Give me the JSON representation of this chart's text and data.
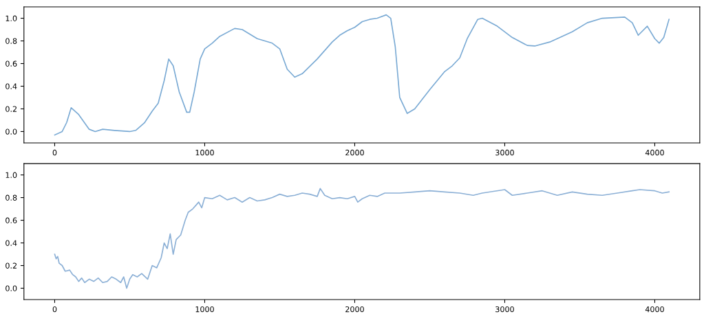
{
  "chart_data": [
    {
      "type": "line",
      "xlim": [
        -205,
        4300
      ],
      "ylim": [
        -0.1,
        1.1
      ],
      "xticks": [
        0,
        1000,
        2000,
        3000,
        4000
      ],
      "yticks": [
        {
          "value": 0,
          "label": "0.0"
        },
        {
          "value": 0.2,
          "label": "0.2"
        },
        {
          "value": 0.4,
          "label": "0.4"
        },
        {
          "value": 0.6,
          "label": "0.6"
        },
        {
          "value": 0.8,
          "label": "0.8"
        },
        {
          "value": 1.0,
          "label": "1.0"
        }
      ],
      "grid": false,
      "legend": false,
      "series": [
        {
          "color": "#7aaad4",
          "x": [
            0,
            50,
            80,
            110,
            160,
            230,
            270,
            320,
            400,
            500,
            540,
            600,
            650,
            690,
            730,
            760,
            790,
            830,
            880,
            900,
            930,
            970,
            1000,
            1050,
            1100,
            1200,
            1250,
            1350,
            1450,
            1500,
            1550,
            1600,
            1650,
            1750,
            1850,
            1900,
            1950,
            2000,
            2050,
            2100,
            2150,
            2210,
            2240,
            2270,
            2300,
            2350,
            2400,
            2500,
            2600,
            2650,
            2700,
            2750,
            2820,
            2850,
            2950,
            3050,
            3150,
            3200,
            3300,
            3450,
            3550,
            3650,
            3800,
            3850,
            3890,
            3950,
            4000,
            4030,
            4060,
            4095
          ],
          "values": [
            -0.03,
            0.0,
            0.08,
            0.21,
            0.15,
            0.02,
            0.0,
            0.02,
            0.01,
            0.0,
            0.01,
            0.08,
            0.18,
            0.25,
            0.45,
            0.64,
            0.58,
            0.35,
            0.17,
            0.17,
            0.35,
            0.64,
            0.73,
            0.78,
            0.84,
            0.91,
            0.9,
            0.82,
            0.78,
            0.73,
            0.55,
            0.48,
            0.51,
            0.64,
            0.79,
            0.85,
            0.89,
            0.92,
            0.97,
            0.99,
            1.0,
            1.03,
            1.0,
            0.75,
            0.3,
            0.16,
            0.2,
            0.37,
            0.53,
            0.58,
            0.65,
            0.82,
            0.99,
            1.0,
            0.93,
            0.83,
            0.76,
            0.755,
            0.79,
            0.88,
            0.96,
            1.0,
            1.01,
            0.96,
            0.85,
            0.93,
            0.82,
            0.78,
            0.83,
            0.99
          ]
        }
      ]
    },
    {
      "type": "line",
      "xlim": [
        -205,
        4300
      ],
      "ylim": [
        -0.1,
        1.1
      ],
      "xticks": [
        0,
        1000,
        2000,
        3000,
        4000
      ],
      "yticks": [
        {
          "value": 0,
          "label": "0.0"
        },
        {
          "value": 0.2,
          "label": "0.2"
        },
        {
          "value": 0.4,
          "label": "0.4"
        },
        {
          "value": 0.6,
          "label": "0.6"
        },
        {
          "value": 0.8,
          "label": "0.8"
        },
        {
          "value": 1.0,
          "label": "1.0"
        }
      ],
      "grid": false,
      "legend": false,
      "series": [
        {
          "color": "#8cb0d6",
          "x": [
            0,
            10,
            20,
            30,
            50,
            70,
            100,
            120,
            140,
            160,
            180,
            200,
            230,
            260,
            290,
            320,
            350,
            380,
            410,
            440,
            460,
            480,
            500,
            520,
            550,
            580,
            620,
            650,
            680,
            710,
            730,
            750,
            770,
            790,
            810,
            840,
            870,
            890,
            920,
            940,
            960,
            980,
            1000,
            1050,
            1100,
            1150,
            1200,
            1250,
            1300,
            1350,
            1400,
            1450,
            1500,
            1550,
            1600,
            1650,
            1700,
            1750,
            1770,
            1800,
            1850,
            1900,
            1950,
            2000,
            2020,
            2050,
            2100,
            2150,
            2200,
            2300,
            2400,
            2500,
            2600,
            2700,
            2790,
            2850,
            3000,
            3050,
            3150,
            3250,
            3350,
            3450,
            3550,
            3650,
            3750,
            3850,
            3900,
            4000,
            4050,
            4095
          ],
          "values": [
            0.3,
            0.26,
            0.28,
            0.22,
            0.2,
            0.15,
            0.16,
            0.12,
            0.1,
            0.06,
            0.09,
            0.05,
            0.08,
            0.06,
            0.09,
            0.05,
            0.06,
            0.1,
            0.08,
            0.05,
            0.1,
            0.0,
            0.08,
            0.12,
            0.1,
            0.13,
            0.08,
            0.2,
            0.18,
            0.27,
            0.4,
            0.35,
            0.48,
            0.3,
            0.43,
            0.47,
            0.6,
            0.67,
            0.7,
            0.73,
            0.76,
            0.71,
            0.8,
            0.79,
            0.82,
            0.78,
            0.8,
            0.76,
            0.8,
            0.77,
            0.78,
            0.8,
            0.83,
            0.81,
            0.82,
            0.84,
            0.83,
            0.81,
            0.88,
            0.82,
            0.79,
            0.8,
            0.79,
            0.81,
            0.76,
            0.79,
            0.82,
            0.81,
            0.84,
            0.84,
            0.85,
            0.86,
            0.85,
            0.84,
            0.82,
            0.84,
            0.87,
            0.82,
            0.84,
            0.86,
            0.82,
            0.85,
            0.83,
            0.82,
            0.84,
            0.86,
            0.87,
            0.86,
            0.84,
            0.85
          ]
        }
      ]
    }
  ]
}
